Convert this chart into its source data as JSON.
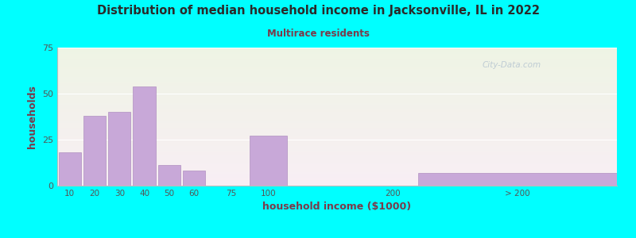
{
  "title": "Distribution of median household income in Jacksonville, IL in 2022",
  "subtitle": "Multirace residents",
  "xlabel": "household income ($1000)",
  "ylabel": "households",
  "background_outer": "#00FFFF",
  "background_inner_top": "#eef4e4",
  "background_inner_bottom": "#f8eef4",
  "bar_color": "#c8a8d8",
  "bar_edge_color": "#b090c0",
  "title_color": "#2a2a2a",
  "subtitle_color": "#7a3a4a",
  "axis_label_color": "#7a3a4a",
  "tick_label_color": "#555555",
  "watermark": "City-Data.com",
  "categories": [
    "10",
    "20",
    "30",
    "40",
    "50",
    "60",
    "75",
    "100",
    "200",
    "> 200"
  ],
  "values": [
    18,
    38,
    40,
    54,
    11,
    8,
    0,
    27,
    0,
    7
  ],
  "positions": [
    0,
    1,
    2,
    3,
    4,
    5,
    6.5,
    8,
    13,
    18
  ],
  "bar_widths": [
    0.9,
    0.9,
    0.9,
    0.9,
    0.9,
    0.9,
    0.9,
    1.5,
    0,
    8
  ],
  "ylim": [
    0,
    75
  ],
  "yticks": [
    0,
    25,
    50,
    75
  ],
  "xlim": [
    -0.5,
    22
  ]
}
